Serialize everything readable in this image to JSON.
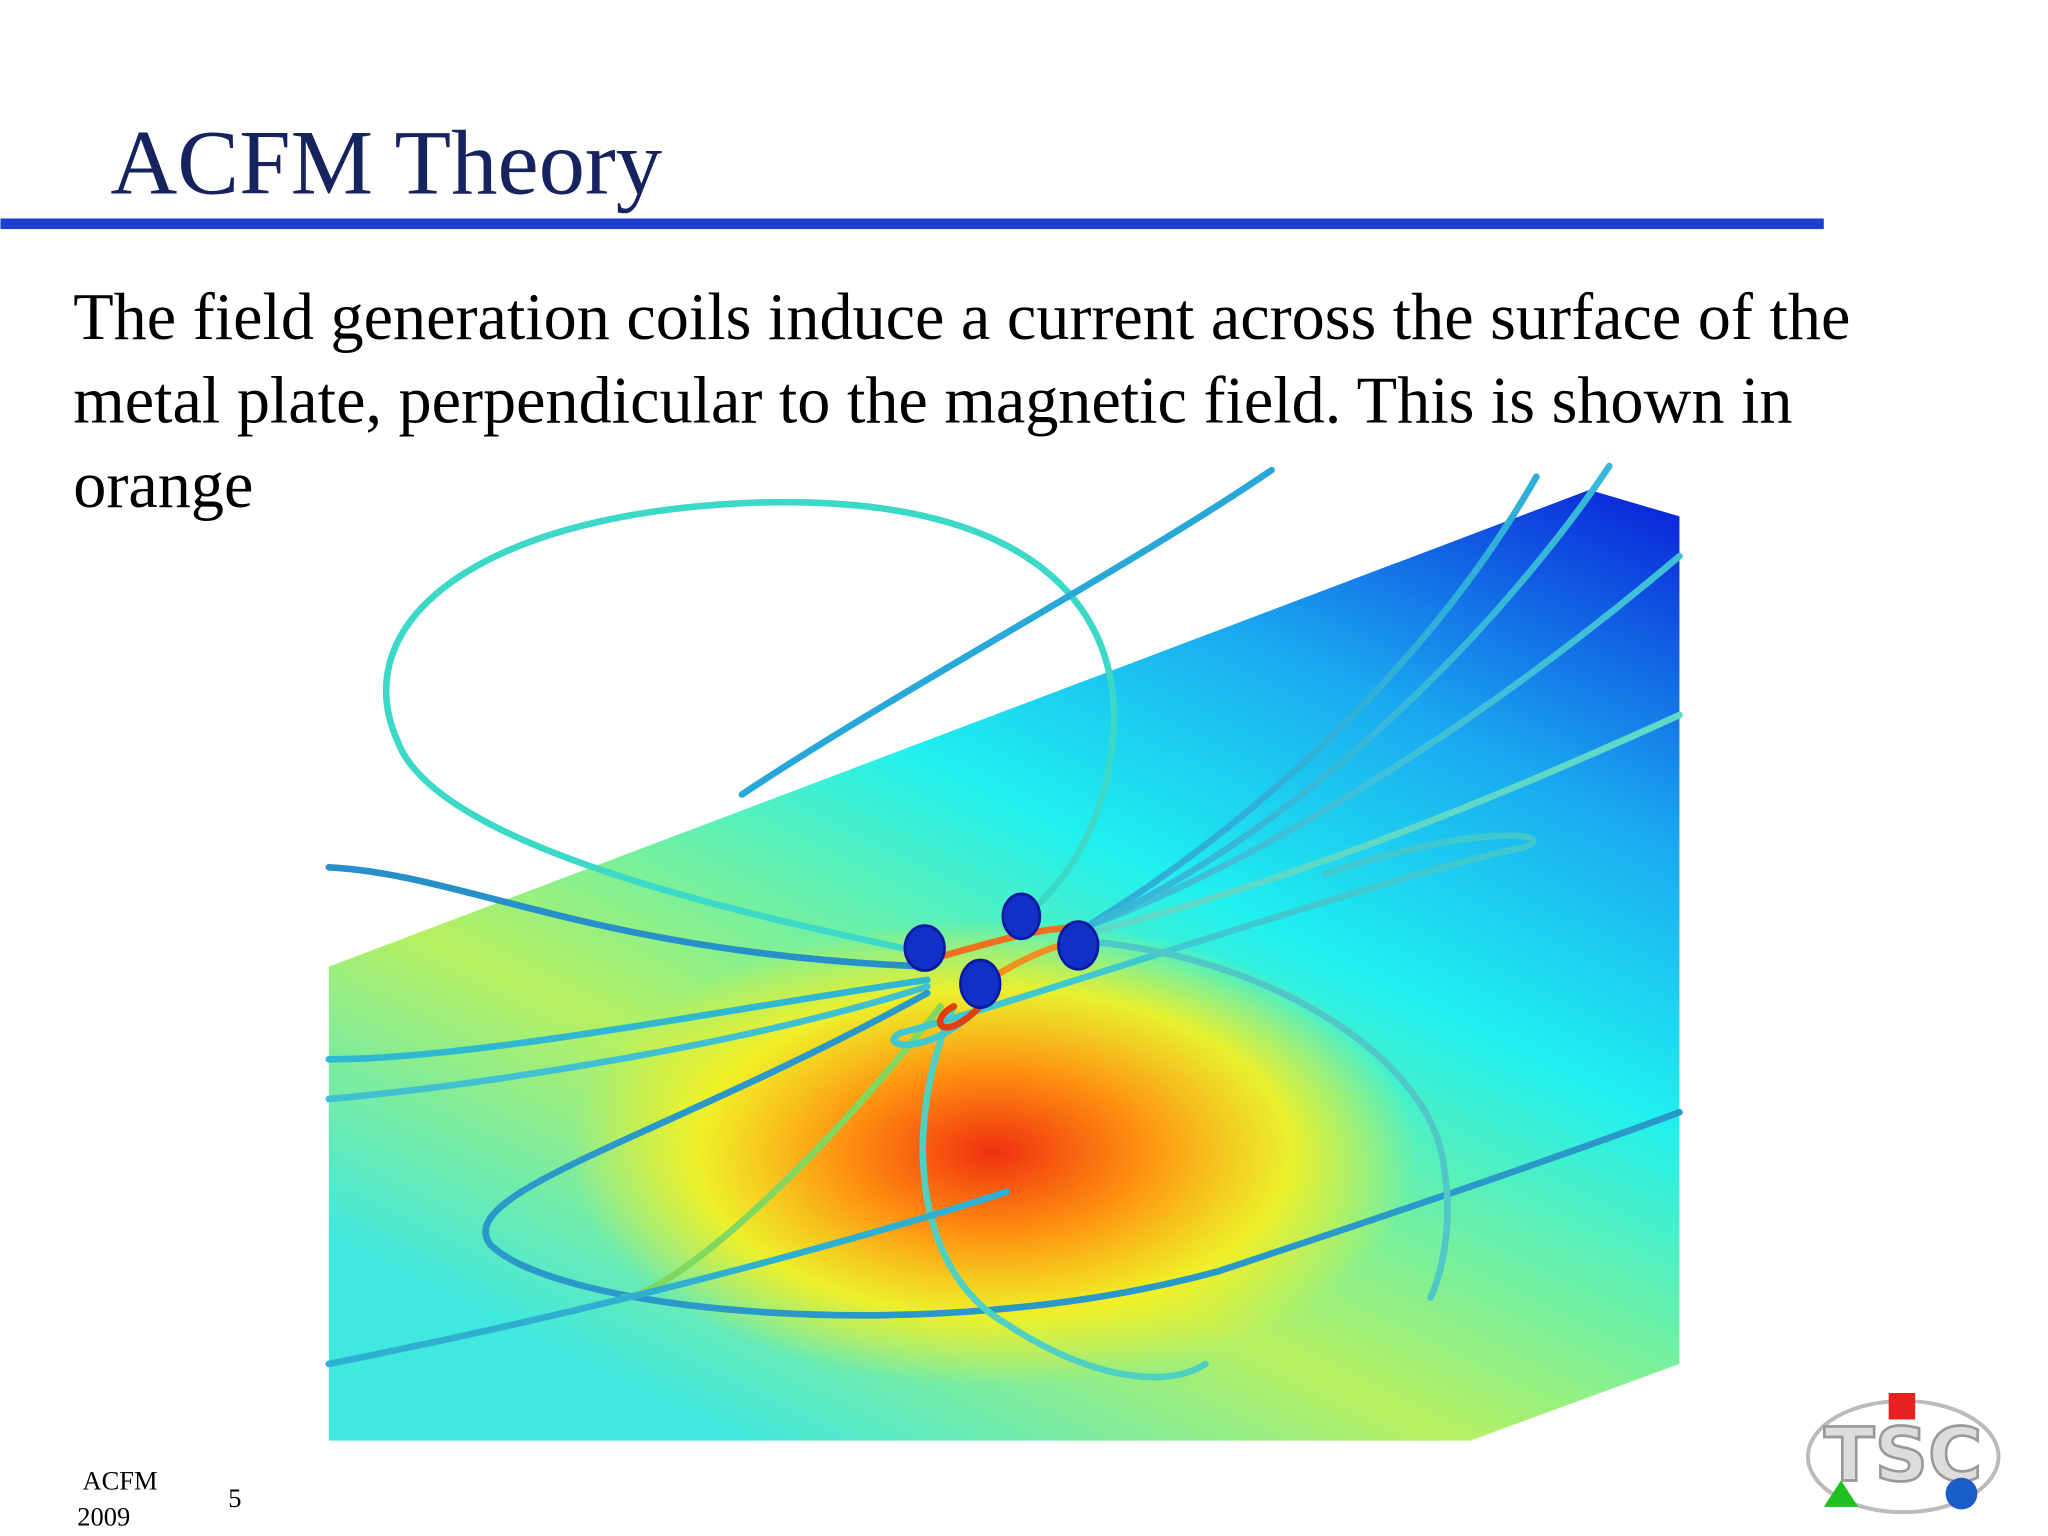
{
  "header": {
    "title": "ACFM Theory"
  },
  "body": {
    "lines": [
      "The field generation coils induce a current across the surface of the",
      "metal plate, perpendicular  to the magnetic field.  This is shown in",
      "orange"
    ]
  },
  "footer": {
    "name": "ACFM",
    "year": "2009",
    "page": "5"
  },
  "logo": {
    "text": "TSC"
  }
}
